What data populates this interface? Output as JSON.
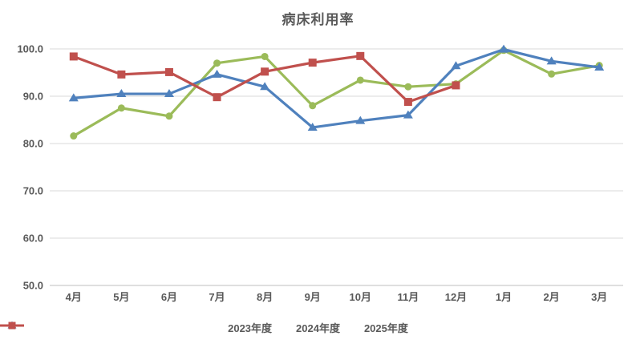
{
  "chart_data": {
    "type": "line",
    "title": "病床利用率",
    "categories": [
      "4月",
      "5月",
      "6月",
      "7月",
      "8月",
      "9月",
      "10月",
      "11月",
      "12月",
      "1月",
      "2月",
      "3月"
    ],
    "series": [
      {
        "name": "2023年度",
        "color": "#9BBB59",
        "marker": "circle",
        "values": [
          81.6,
          87.5,
          85.8,
          97.0,
          98.4,
          88.0,
          93.4,
          92.0,
          92.6,
          99.7,
          94.7,
          96.5
        ]
      },
      {
        "name": "2024年度",
        "color": "#4F81BD",
        "marker": "triangle",
        "values": [
          89.6,
          90.5,
          90.5,
          94.6,
          92.0,
          83.4,
          84.8,
          86.0,
          96.4,
          99.9,
          97.4,
          96.1
        ]
      },
      {
        "name": "2025年度",
        "color": "#C0504D",
        "marker": "square",
        "values": [
          98.4,
          94.6,
          95.1,
          89.8,
          95.2,
          97.1,
          98.5,
          88.8,
          92.3,
          null,
          null,
          null
        ]
      }
    ],
    "ylim": [
      50,
      100
    ],
    "ytick_labels": [
      "50.0",
      "60.0",
      "70.0",
      "80.0",
      "90.0",
      "100.0"
    ],
    "xlabel": "",
    "ylabel": "",
    "grid": "horizontal",
    "gridline_color": "#D9D9D9",
    "axisline_color": "#BFBFBF",
    "text_color": "#595959",
    "legend_position": "bottom"
  }
}
